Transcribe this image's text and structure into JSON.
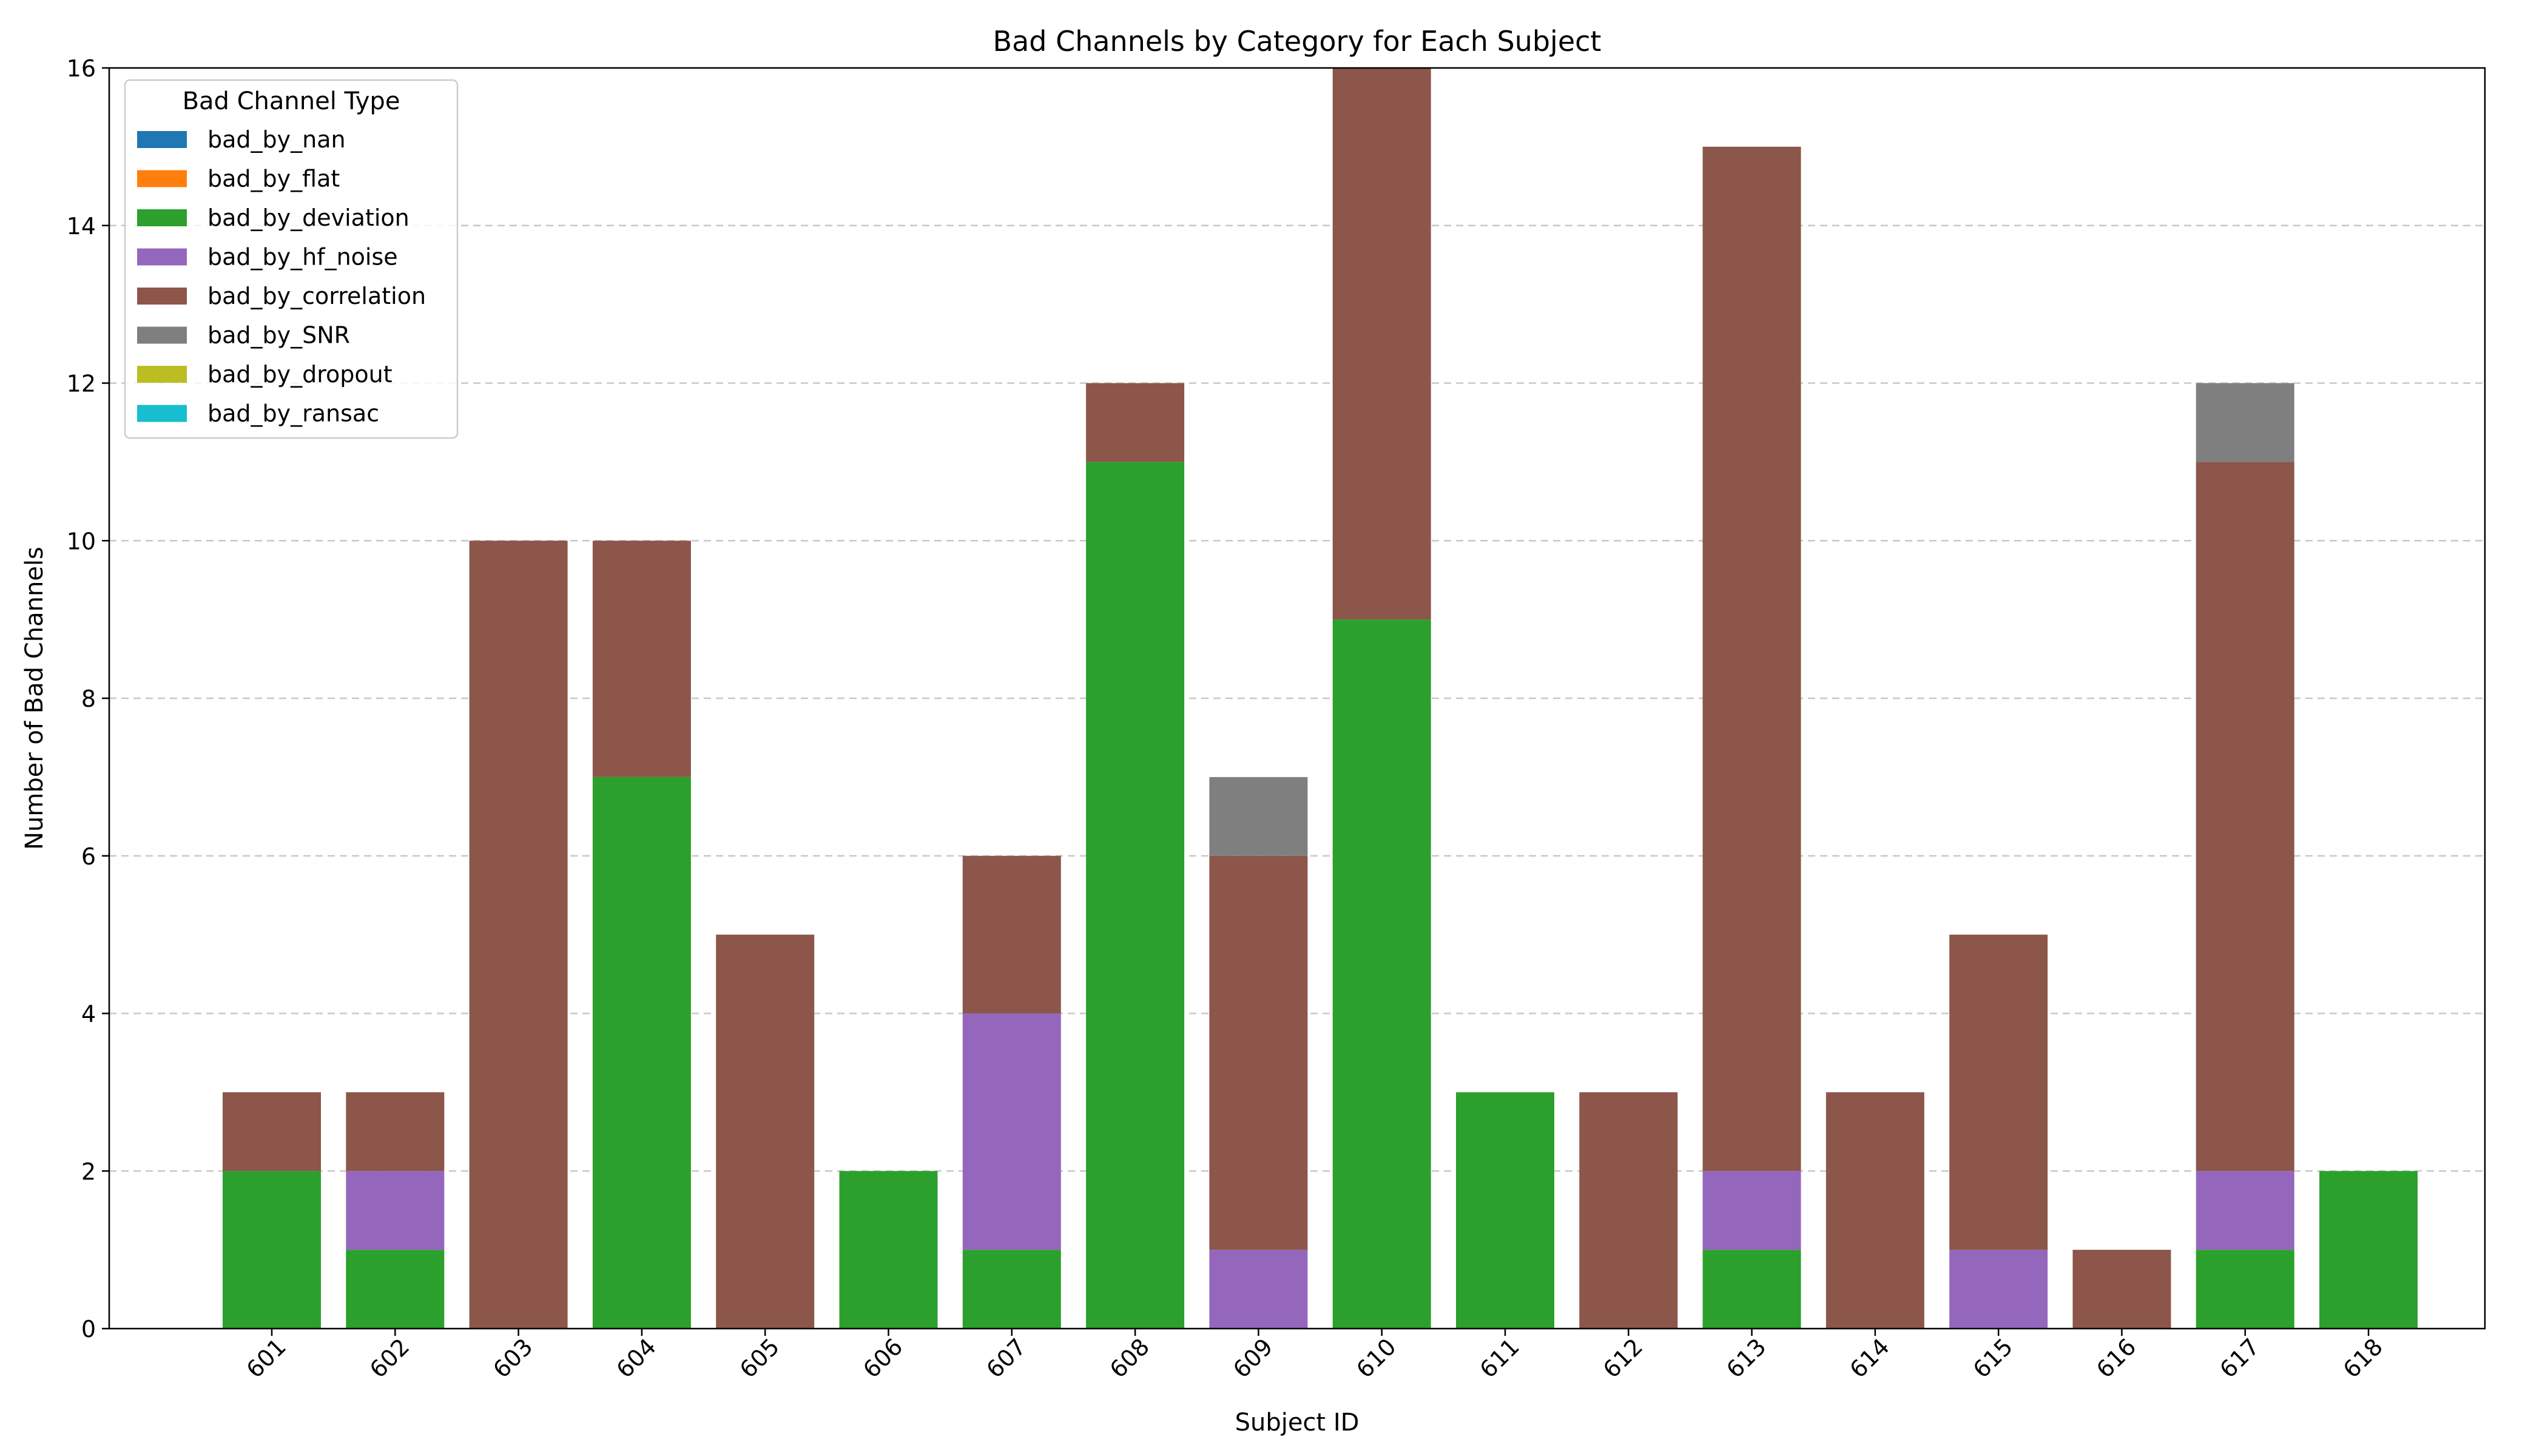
{
  "chart_data": {
    "type": "bar",
    "stacked": true,
    "title": "Bad Channels by Category for Each Subject",
    "xlabel": "Subject ID",
    "ylabel": "Number of Bad Channels",
    "ylim": [
      0,
      16
    ],
    "yticks": [
      0,
      2,
      4,
      6,
      8,
      10,
      12,
      14,
      16
    ],
    "grid": "y-dashed",
    "legend_title": "Bad Channel Type",
    "legend_position": "top-left",
    "categories": [
      "601",
      "602",
      "603",
      "604",
      "605",
      "606",
      "607",
      "608",
      "609",
      "610",
      "611",
      "612",
      "613",
      "614",
      "615",
      "616",
      "617",
      "618"
    ],
    "series": [
      {
        "name": "bad_by_nan",
        "color": "#1f77b4",
        "values": [
          0,
          0,
          0,
          0,
          0,
          0,
          0,
          0,
          0,
          0,
          0,
          0,
          0,
          0,
          0,
          0,
          0,
          0
        ]
      },
      {
        "name": "bad_by_flat",
        "color": "#ff7f0e",
        "values": [
          0,
          0,
          0,
          0,
          0,
          0,
          0,
          0,
          0,
          0,
          0,
          0,
          0,
          0,
          0,
          0,
          0,
          0
        ]
      },
      {
        "name": "bad_by_deviation",
        "color": "#2ca02c",
        "values": [
          2,
          1,
          0,
          7,
          0,
          2,
          1,
          11,
          0,
          9,
          3,
          0,
          1,
          0,
          0,
          0,
          1,
          2
        ]
      },
      {
        "name": "bad_by_hf_noise",
        "color": "#9467bd",
        "values": [
          0,
          1,
          0,
          0,
          0,
          0,
          3,
          0,
          1,
          0,
          0,
          0,
          1,
          0,
          1,
          0,
          1,
          0
        ]
      },
      {
        "name": "bad_by_correlation",
        "color": "#8c564b",
        "values": [
          1,
          1,
          10,
          3,
          5,
          0,
          2,
          1,
          5,
          7,
          0,
          3,
          13,
          3,
          4,
          1,
          9,
          0
        ]
      },
      {
        "name": "bad_by_SNR",
        "color": "#7f7f7f",
        "values": [
          0,
          0,
          0,
          0,
          0,
          0,
          0,
          0,
          1,
          0,
          0,
          0,
          0,
          0,
          0,
          0,
          1,
          0
        ]
      },
      {
        "name": "bad_by_dropout",
        "color": "#bcbd22",
        "values": [
          0,
          0,
          0,
          0,
          0,
          0,
          0,
          0,
          0,
          0,
          0,
          0,
          0,
          0,
          0,
          0,
          0,
          0
        ]
      },
      {
        "name": "bad_by_ransac",
        "color": "#17becf",
        "values": [
          0,
          0,
          0,
          0,
          0,
          0,
          0,
          0,
          0,
          0,
          0,
          0,
          0,
          0,
          0,
          0,
          0,
          0
        ]
      }
    ]
  }
}
